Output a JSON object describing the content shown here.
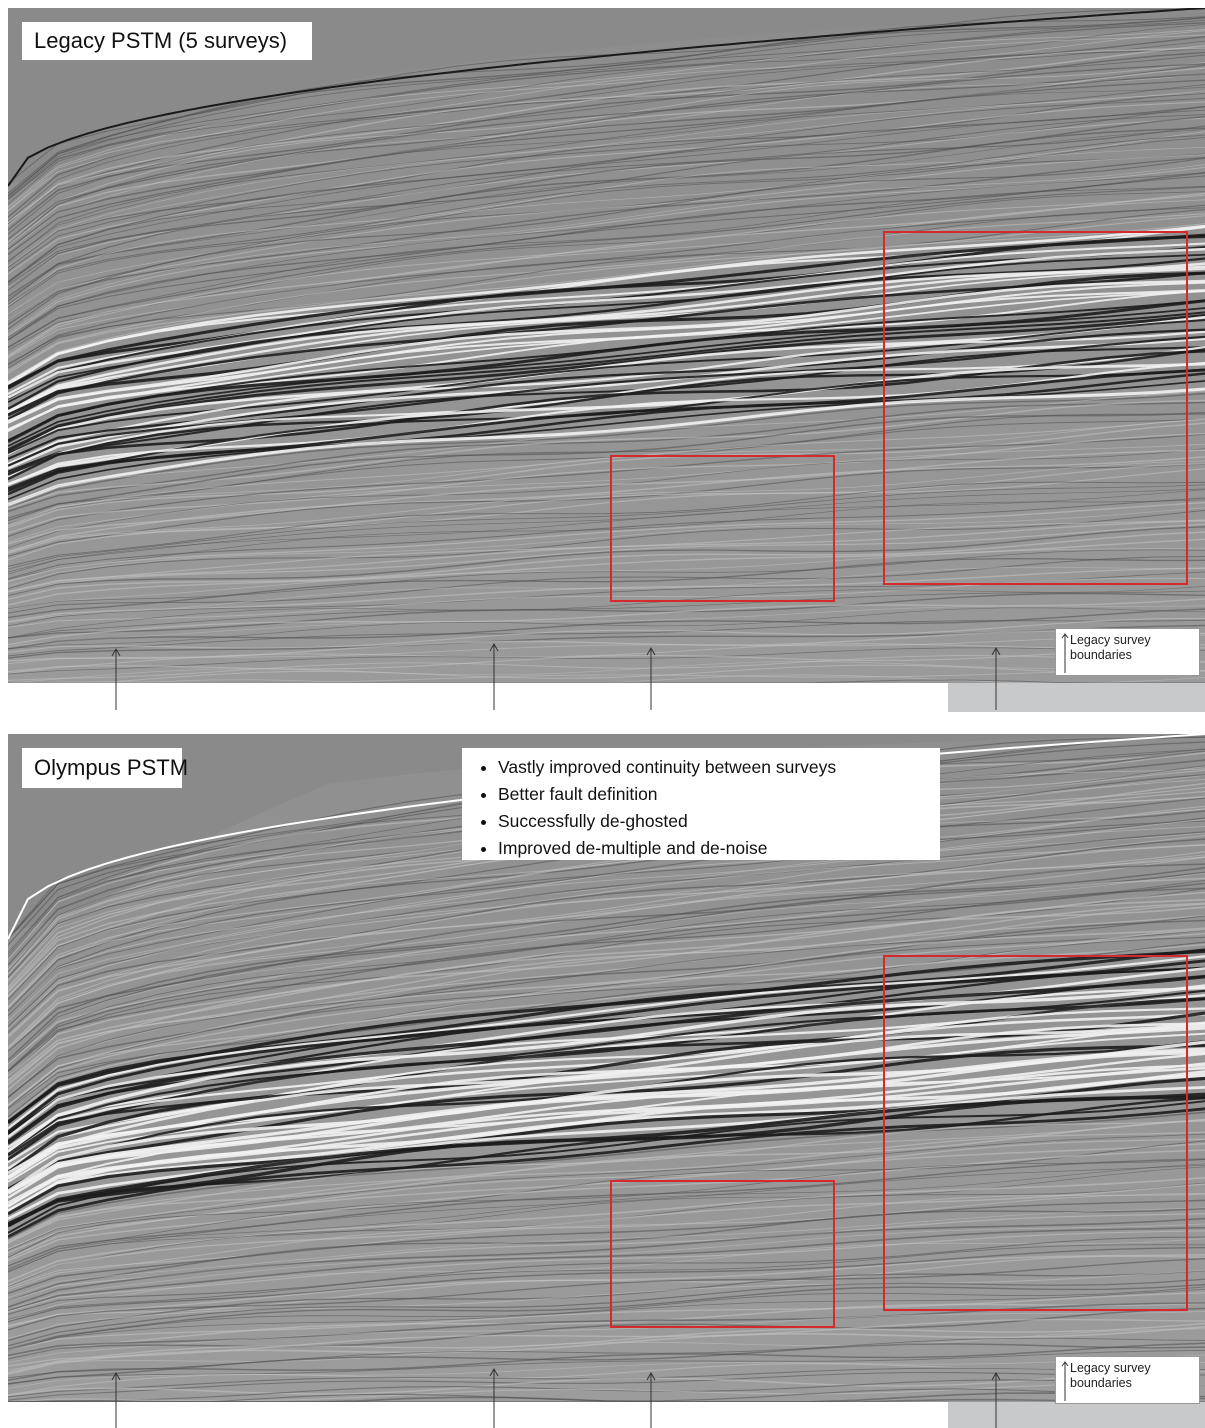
{
  "panels": [
    {
      "title": "Legacy PSTM (5 surveys)",
      "legend": {
        "line1": "Legacy survey",
        "line2": "boundaries"
      }
    },
    {
      "title": "Olympus PSTM",
      "bullets": [
        "Vastly improved continuity between surveys",
        "Better fault definition",
        "Successfully de-ghosted",
        "Improved de-multiple and de-noise"
      ],
      "legend": {
        "line1": "Legacy survey",
        "line2": "boundaries"
      }
    }
  ],
  "colors": {
    "seismic_background": "#8e8e8e",
    "highlight_box": "#d62a2a",
    "arrow": "#333333"
  }
}
